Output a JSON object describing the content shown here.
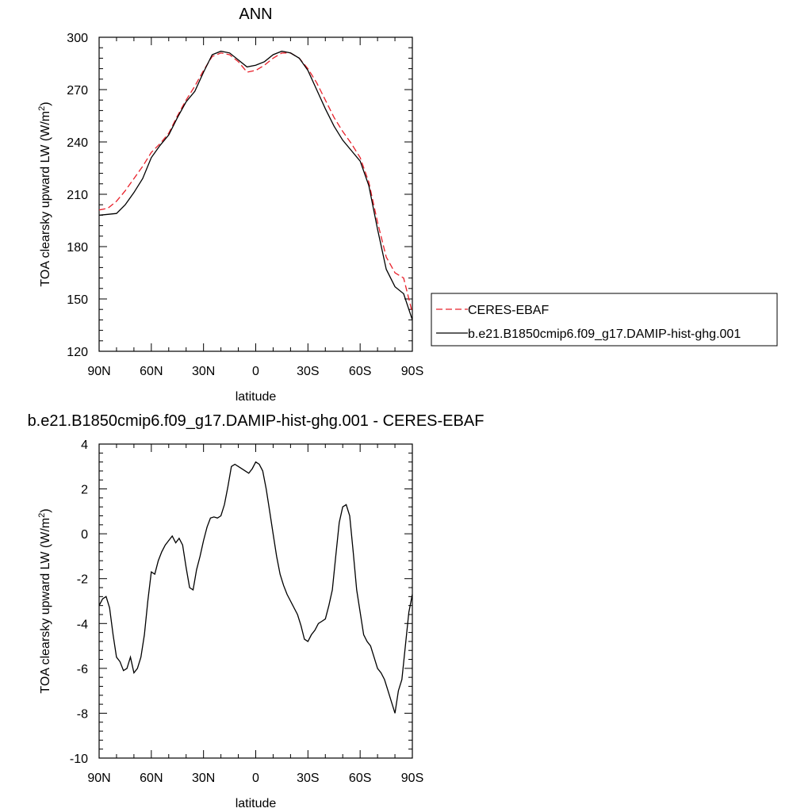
{
  "chart_data": [
    {
      "type": "line",
      "title": "ANN",
      "xlabel": "latitude",
      "ylabel_main": "TOA clearsky upward LW (W/m",
      "ylabel_sup": "2",
      "ylabel_end": ")",
      "xticks": [
        "90N",
        "60N",
        "30N",
        "0",
        "30S",
        "60S",
        "90S"
      ],
      "yticks": [
        "120",
        "150",
        "180",
        "210",
        "240",
        "270",
        "300"
      ],
      "xlim": [
        90,
        -90
      ],
      "ylim": [
        120,
        300
      ],
      "grid": false,
      "legend_position": "right-center",
      "x": [
        90,
        85,
        80,
        75,
        70,
        65,
        60,
        55,
        50,
        45,
        40,
        35,
        30,
        25,
        20,
        15,
        10,
        5,
        0,
        -5,
        -10,
        -15,
        -20,
        -25,
        -30,
        -35,
        -40,
        -45,
        -50,
        -55,
        -60,
        -65,
        -70,
        -75,
        -80,
        -85,
        -90
      ],
      "series": [
        {
          "name": "CERES-EBAF",
          "color": "#e8202a",
          "dash": true,
          "values": [
            201,
            202,
            206,
            212,
            219,
            226,
            234,
            239,
            245,
            255,
            264,
            272,
            281,
            289,
            291,
            290,
            286,
            280,
            281,
            284,
            288,
            291,
            291,
            288,
            282,
            274,
            264,
            254,
            246,
            239,
            231,
            217,
            194,
            174,
            165,
            162,
            142
          ]
        },
        {
          "name": "b.e21.B1850cmip6.f09_g17.DAMIP-hist-ghg.001",
          "color": "#000000",
          "dash": false,
          "values": [
            198,
            198.5,
            199,
            204,
            211,
            219,
            231,
            238,
            244,
            254,
            263,
            269,
            280,
            290,
            292,
            291,
            287,
            283,
            284,
            286,
            290,
            292,
            291,
            288,
            281,
            270,
            259,
            249,
            241,
            235,
            229,
            215,
            190,
            167,
            157,
            153,
            138
          ]
        }
      ]
    },
    {
      "type": "line",
      "title": "b.e21.B1850cmip6.f09_g17.DAMIP-hist-ghg.001 - CERES-EBAF",
      "xlabel": "latitude",
      "ylabel_main": "TOA clearsky upward LW (W/m",
      "ylabel_sup": "2",
      "ylabel_end": ")",
      "xticks": [
        "90N",
        "60N",
        "30N",
        "0",
        "30S",
        "60S",
        "90S"
      ],
      "yticks": [
        "-10",
        "-8",
        "-6",
        "-4",
        "-2",
        "0",
        "2",
        "4"
      ],
      "xlim": [
        90,
        -90
      ],
      "ylim": [
        -10,
        4
      ],
      "grid": false,
      "series": [
        {
          "color": "#000000",
          "x": [
            90,
            88,
            86,
            84,
            82,
            80,
            78,
            76,
            74,
            72,
            70,
            68,
            66,
            64,
            62,
            60,
            58,
            56,
            54,
            52,
            50,
            48,
            46,
            44,
            42,
            40,
            38,
            36,
            34,
            32,
            30,
            28,
            26,
            24,
            22,
            20,
            18,
            16,
            14,
            12,
            10,
            8,
            6,
            4,
            2,
            0,
            -2,
            -4,
            -6,
            -8,
            -10,
            -12,
            -14,
            -16,
            -18,
            -20,
            -22,
            -24,
            -26,
            -28,
            -30,
            -32,
            -34,
            -36,
            -38,
            -40,
            -42,
            -44,
            -46,
            -48,
            -50,
            -52,
            -54,
            -56,
            -58,
            -60,
            -61,
            -62,
            -64,
            -66,
            -68,
            -70,
            -72,
            -74,
            -76,
            -78,
            -80,
            -82,
            -84,
            -86,
            -88,
            -90
          ],
          "values": [
            -3.2,
            -2.9,
            -2.8,
            -3.3,
            -4.5,
            -5.5,
            -5.7,
            -6.1,
            -6.0,
            -5.5,
            -6.2,
            -6.0,
            -5.5,
            -4.5,
            -3.0,
            -1.7,
            -1.8,
            -1.2,
            -0.8,
            -0.5,
            -0.3,
            -0.1,
            -0.4,
            -0.2,
            -0.5,
            -1.5,
            -2.4,
            -2.5,
            -1.6,
            -1.0,
            -0.3,
            0.3,
            0.7,
            0.75,
            0.7,
            0.8,
            1.3,
            2.1,
            3.0,
            3.1,
            3.0,
            2.9,
            2.8,
            2.7,
            2.9,
            3.2,
            3.1,
            2.8,
            2.0,
            1.0,
            0.0,
            -1.0,
            -1.8,
            -2.3,
            -2.7,
            -3.0,
            -3.3,
            -3.6,
            -4.1,
            -4.7,
            -4.8,
            -4.5,
            -4.3,
            -4.0,
            -3.9,
            -3.8,
            -3.2,
            -2.5,
            -1.0,
            0.5,
            1.2,
            1.3,
            0.8,
            -0.8,
            -2.5,
            -3.5,
            -4.0,
            -4.5,
            -4.8,
            -5.0,
            -5.5,
            -6.0,
            -6.2,
            -6.5,
            -7.0,
            -7.5,
            -8.0,
            -7.0,
            -6.5,
            -5.0,
            -3.5,
            -2.7
          ]
        }
      ]
    }
  ]
}
